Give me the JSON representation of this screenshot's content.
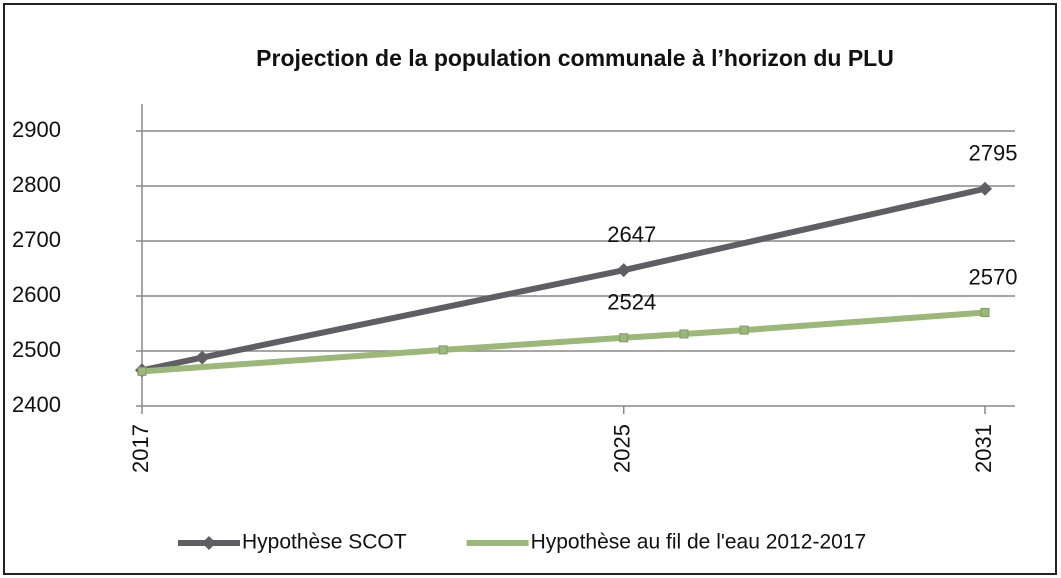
{
  "chart_data": {
    "type": "line",
    "title": "Projection de la population communale à l’horizon du PLU",
    "series": [
      {
        "name": "Hypothèse SCOT",
        "color": "#5f5f63",
        "marker": "diamond",
        "x": [
          2017,
          2018,
          2025,
          2031
        ],
        "values": [
          2465,
          2488,
          2647,
          2795
        ],
        "value_labels": [
          null,
          null,
          "2647",
          "2795"
        ]
      },
      {
        "name": "Hypothèse au fil de l'eau 2012-2017",
        "color": "#9bb77a",
        "marker": "square",
        "x": [
          2017,
          2022,
          2025,
          2026,
          2027,
          2031
        ],
        "values": [
          2463,
          2502,
          2524,
          2531,
          2538,
          2570
        ],
        "value_labels": [
          null,
          null,
          "2524",
          null,
          null,
          "2570"
        ]
      }
    ],
    "xlim": [
      2017,
      2031
    ],
    "xticks": [
      2017,
      2025,
      2031
    ],
    "ylim": [
      2400,
      2900
    ],
    "yticks": [
      2400,
      2500,
      2600,
      2700,
      2800,
      2900
    ],
    "grid": true,
    "legend": "bottom"
  }
}
